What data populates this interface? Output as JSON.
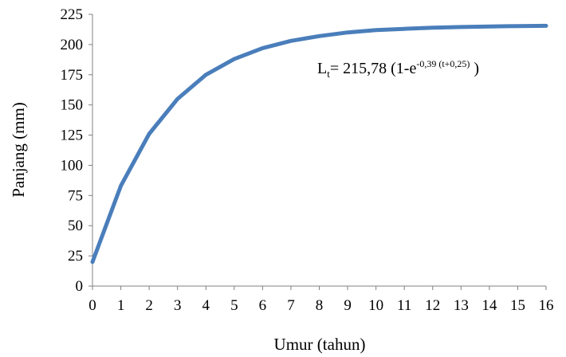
{
  "chart_data": {
    "type": "line",
    "title": "",
    "xlabel": "Umur (tahun)",
    "ylabel": "Panjang (mm)",
    "xlim": [
      0,
      16
    ],
    "ylim": [
      0,
      225
    ],
    "x_ticks": [
      0,
      1,
      2,
      3,
      4,
      5,
      6,
      7,
      8,
      9,
      10,
      11,
      12,
      13,
      14,
      15,
      16
    ],
    "y_ticks": [
      0,
      25,
      50,
      75,
      100,
      125,
      150,
      175,
      200,
      225
    ],
    "grid": false,
    "series": [
      {
        "color": "#4A7EBB",
        "x": [
          0,
          1,
          2,
          3,
          4,
          5,
          6,
          7,
          8,
          9,
          10,
          11,
          12,
          13,
          14,
          15,
          16
        ],
        "y": [
          20,
          83,
          126,
          155,
          175,
          188,
          197,
          203,
          207,
          210,
          212,
          213,
          214,
          214.5,
          215,
          215.3,
          215.5
        ]
      }
    ],
    "annotation": {
      "lhs": "L",
      "lhs_sub": "t",
      "eq_main": "= 215,78 (1-e",
      "eq_exp": "-0,39 (t+0,25)",
      "eq_tail": " )"
    }
  }
}
